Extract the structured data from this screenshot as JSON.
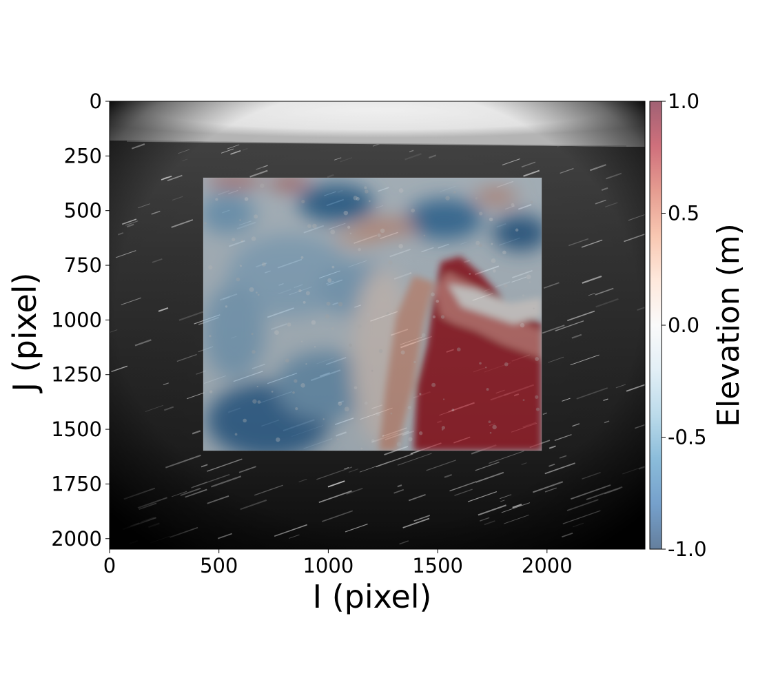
{
  "chart_data": {
    "type": "heatmap",
    "title": "",
    "xlabel": "I (pixel)",
    "ylabel": "J (pixel)",
    "xlim": [
      0,
      2448
    ],
    "ylim": [
      2048,
      0
    ],
    "y_inverted": true,
    "xticks": [
      0,
      500,
      1000,
      1500,
      2000
    ],
    "yticks": [
      0,
      250,
      500,
      750,
      1000,
      1250,
      1500,
      1750,
      2000
    ],
    "background_image": "grayscale sea-surface photograph (fisheye vignette, bright sky band at top)",
    "elevation_overlay": {
      "i_range": [
        430,
        1975
      ],
      "j_range": [
        355,
        1600
      ],
      "value_range": [
        -1.0,
        1.0
      ],
      "description": "blue troughs in upper rows and lower-left; red wave crest ridge on right side"
    },
    "colorbar": {
      "label": "Elevation (m)",
      "ticks": [
        1.0,
        0.5,
        0.0,
        -0.5,
        -1.0
      ],
      "tick_labels": [
        "1.0",
        "0.5",
        "0.0",
        "-0.5",
        "-1.0"
      ],
      "colormap": "RdBu_r"
    },
    "grid": false
  }
}
